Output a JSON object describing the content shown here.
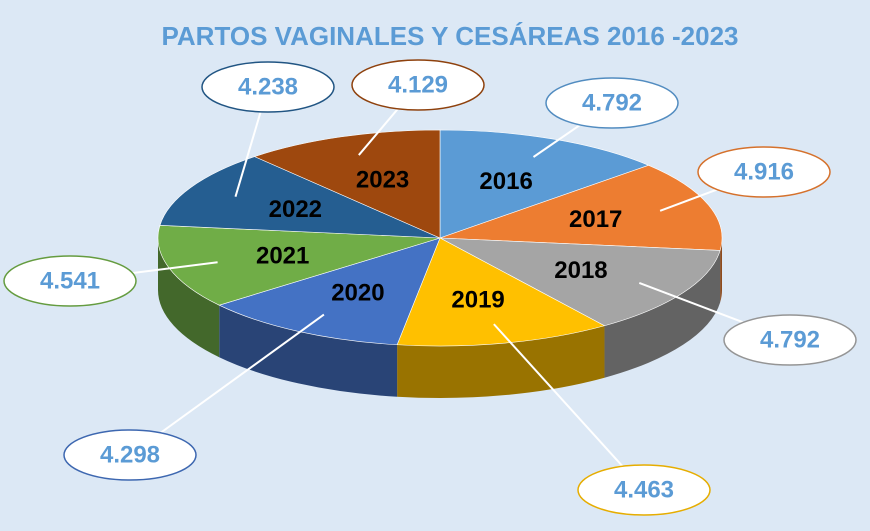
{
  "chart_data": {
    "type": "pie3d",
    "title": "PARTOS VAGINALES Y CESÁREAS 2016 -2023",
    "categories": [
      "2016",
      "2017",
      "2018",
      "2019",
      "2020",
      "2021",
      "2022",
      "2023"
    ],
    "values": [
      4792,
      4916,
      4792,
      4463,
      4298,
      4541,
      4238,
      4129
    ],
    "value_labels": [
      "4.792",
      "4.916",
      "4.792",
      "4.463",
      "4.298",
      "4.541",
      "4.238",
      "4.129"
    ],
    "colors": [
      "#5b9bd5",
      "#ed7d31",
      "#a5a5a5",
      "#ffc000",
      "#4472c4",
      "#70ad47",
      "#255e91",
      "#9e480e"
    ]
  }
}
